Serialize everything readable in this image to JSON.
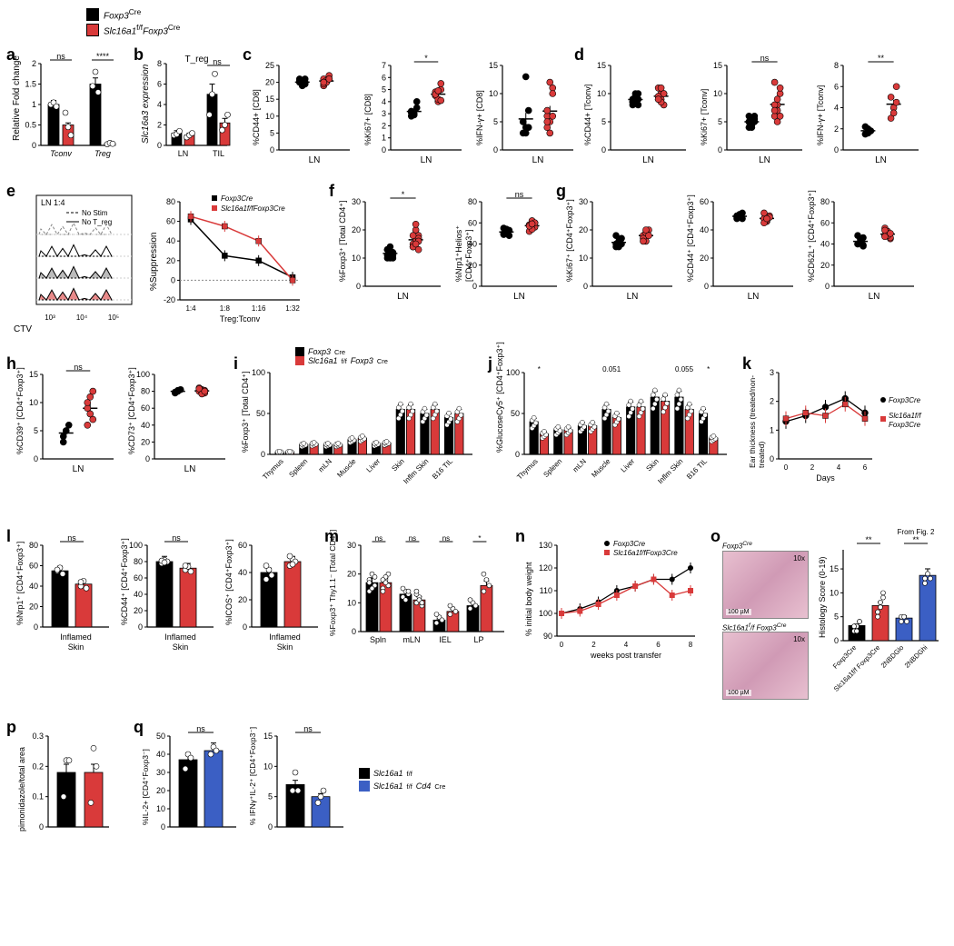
{
  "colors": {
    "black": "#000000",
    "red": "#d93a3a",
    "blue": "#3b5fc4",
    "gray": "#888888",
    "lightgray": "#cccccc"
  },
  "legend": {
    "item1": "Foxp3^Cre",
    "item2": "Slc16a1^f/f Foxp3^Cre"
  },
  "panels": {
    "a": {
      "label": "a",
      "ylabel": "Relative Fold change",
      "ymax": 2.0,
      "ytick": 0.5,
      "categories": [
        "T_conv",
        "T_reg"
      ],
      "significance": [
        "ns",
        "****"
      ],
      "bars": [
        {
          "cat": 0,
          "group": 0,
          "val": 1.0,
          "points": [
            1.0,
            1.05,
            0.95
          ]
        },
        {
          "cat": 0,
          "group": 1,
          "val": 0.5,
          "points": [
            0.8,
            0.45,
            0.25
          ]
        },
        {
          "cat": 1,
          "group": 0,
          "val": 1.5,
          "points": [
            1.45,
            1.8,
            1.3
          ]
        },
        {
          "cat": 1,
          "group": 1,
          "val": 0.05,
          "points": [
            0.03,
            0.06,
            0.04
          ]
        }
      ]
    },
    "b": {
      "label": "b",
      "title": "T_reg",
      "ylabel": "Slc16a3 expression",
      "ymax": 8,
      "ytick": 2,
      "categories": [
        "LN",
        "TIL"
      ],
      "sig": "ns",
      "bars": [
        {
          "cat": 0,
          "group": 0,
          "val": 1.2,
          "points": [
            1.0,
            1.1,
            1.4
          ]
        },
        {
          "cat": 0,
          "group": 1,
          "val": 1.0,
          "points": [
            0.8,
            1.0,
            1.2
          ]
        },
        {
          "cat": 1,
          "group": 0,
          "val": 5.0,
          "points": [
            3.0,
            5.0,
            7.0
          ]
        },
        {
          "cat": 1,
          "group": 1,
          "val": 2.2,
          "points": [
            1.5,
            2.0,
            3.0
          ]
        }
      ]
    },
    "c": {
      "label": "c",
      "charts": [
        {
          "ylabel": "%CD44+ [CD8]",
          "ymax": 25,
          "ytick": 5,
          "xlab": "LN",
          "g0": [
            20,
            19.5,
            21,
            20.5,
            19,
            20,
            21,
            20,
            19.5
          ],
          "g1": [
            21,
            20,
            22,
            19,
            20.5,
            21,
            19.5,
            20,
            21,
            20
          ]
        },
        {
          "ylabel": "%Ki67+ [CD8]",
          "ymax": 7,
          "ytick": 1,
          "xlab": "LN",
          "sig": "*",
          "g0": [
            2.8,
            3.0,
            3.5,
            3.2,
            3.0,
            4.0,
            3.1,
            2.9
          ],
          "g1": [
            4.5,
            4.0,
            5.0,
            4.8,
            4.2,
            5.5,
            4.6,
            4.9,
            4.1
          ]
        },
        {
          "ylabel": "%IFN-γ+ [CD8]",
          "ymax": 15,
          "ytick": 5,
          "xlab": "LN",
          "g0": [
            3,
            4,
            7,
            5,
            3,
            4,
            5,
            13
          ],
          "g1": [
            6,
            5,
            11,
            4,
            3,
            10,
            5,
            12,
            6,
            7
          ]
        }
      ]
    },
    "d": {
      "label": "d",
      "charts": [
        {
          "ylabel": "%CD44+ [Tconv]",
          "ymax": 15,
          "ytick": 5,
          "xlab": "LN",
          "g0": [
            8,
            9,
            10,
            8.5,
            9.5,
            8,
            9,
            10,
            9,
            8.5
          ],
          "g1": [
            9,
            10,
            8,
            11,
            9,
            10,
            9.5,
            8.5,
            10,
            9,
            11
          ]
        },
        {
          "ylabel": "%Ki67+ [Tconv]",
          "ymax": 15,
          "ytick": 5,
          "xlab": "LN",
          "sig": "ns",
          "g0": [
            4,
            5,
            6,
            5,
            4.5,
            5.5,
            5,
            4,
            5,
            6
          ],
          "g1": [
            6,
            8,
            10,
            12,
            7,
            6,
            8,
            5,
            11,
            7,
            9
          ]
        },
        {
          "ylabel": "%IFN-γ+ [Tconv]",
          "ymax": 8,
          "ytick": 2,
          "xlab": "LN",
          "sig": "**",
          "g0": [
            1.5,
            2,
            1.8,
            2.2,
            1.6
          ],
          "g1": [
            3,
            4,
            6,
            5,
            3.5,
            4.5
          ]
        }
      ]
    },
    "e": {
      "label": "e",
      "flow_title": "LN 1:4",
      "flow_legend": [
        "No Stim",
        "No T_reg"
      ],
      "xlabel": "CTV",
      "xticks": [
        "10³",
        "10⁴",
        "10⁵"
      ],
      "line_ylabel": "%Suppression",
      "line_ymax": 80,
      "line_ymin": -20,
      "line_ytick": 20,
      "line_xlabel": "Treg:Tconv",
      "line_xticks": [
        "1:4",
        "1:8",
        "1:16",
        "1:32"
      ],
      "line_g0": [
        62,
        25,
        20,
        3
      ],
      "line_g1": [
        65,
        55,
        40,
        0
      ]
    },
    "f": {
      "label": "f",
      "charts": [
        {
          "ylabel": "%Foxp3⁺ [Total CD4⁺]",
          "ymax": 30,
          "ytick": 10,
          "xlab": "LN",
          "sig": "*",
          "g0": [
            10,
            12,
            11,
            13,
            10,
            12,
            11,
            14,
            10,
            13,
            12
          ],
          "g1": [
            14,
            16,
            18,
            15,
            20,
            17,
            14,
            22,
            16,
            18,
            15,
            13
          ]
        },
        {
          "ylabel": "%Nrp1⁺Helios⁺ [CD4⁺Foxp3⁺]",
          "ymax": 80,
          "ytick": 20,
          "xlab": "LN",
          "sig": "ns",
          "g0": [
            50,
            52,
            48,
            55,
            50,
            53,
            49,
            54
          ],
          "g1": [
            58,
            55,
            60,
            52,
            62,
            56,
            58,
            54,
            60,
            57,
            59
          ]
        }
      ]
    },
    "g": {
      "label": "g",
      "charts": [
        {
          "ylabel": "%Ki67⁺ [CD4⁺Foxp3⁺]",
          "ymax": 30,
          "ytick": 10,
          "xlab": "LN",
          "g0": [
            14,
            16,
            15,
            18,
            14,
            17,
            15
          ],
          "g1": [
            18,
            16,
            20,
            17,
            19,
            18,
            16,
            20
          ]
        },
        {
          "ylabel": "%CD44⁺ [CD4⁺Foxp3⁺]",
          "ymax": 60,
          "ytick": 20,
          "xlab": "LN",
          "g0": [
            48,
            50,
            52,
            49,
            51,
            48,
            50
          ],
          "g1": [
            48,
            46,
            50,
            52,
            47,
            49,
            45,
            48
          ]
        },
        {
          "ylabel": "%CD62L⁺ [CD4⁺Foxp3⁺]",
          "ymax": 80,
          "ytick": 20,
          "xlab": "LN",
          "g0": [
            40,
            45,
            38,
            48,
            42,
            46,
            40,
            44,
            39
          ],
          "g1": [
            48,
            52,
            45,
            55,
            50,
            46,
            53,
            48,
            50,
            47
          ]
        }
      ]
    },
    "h": {
      "label": "h",
      "charts": [
        {
          "ylabel": "%CD39⁺ [CD4⁺Foxp3⁺]",
          "ymax": 15,
          "ytick": 5,
          "xlab": "LN",
          "sig": "ns",
          "g0": [
            4,
            5,
            6,
            3,
            5
          ],
          "g1": [
            9,
            11,
            7,
            10,
            8,
            12,
            6
          ]
        },
        {
          "ylabel": "%CD73⁺ [CD4⁺Foxp3⁺]",
          "ymax": 100,
          "ytick": 20,
          "xlab": "LN",
          "g0": [
            78,
            80,
            82,
            79,
            81
          ],
          "g1": [
            80,
            82,
            78,
            84,
            79,
            81,
            83,
            77,
            80
          ]
        }
      ]
    },
    "i": {
      "label": "i",
      "ylabel": "%Foxp3⁺ [Total CD4⁺]",
      "ymax": 100,
      "ytick": 50,
      "categories": [
        "Thymus",
        "Spleen",
        "mLN",
        "Muscle",
        "Liver",
        "Skin",
        "Inflm Skin",
        "B16 TIL"
      ],
      "legend": [
        "Foxp3^Cre",
        "Slc16a1^f/f Foxp3^Cre"
      ],
      "bars": [
        {
          "g0": 3,
          "g1": 3
        },
        {
          "g0": 12,
          "g1": 13
        },
        {
          "g0": 12,
          "g1": 12
        },
        {
          "g0": 18,
          "g1": 20
        },
        {
          "g0": 13,
          "g1": 14
        },
        {
          "g0": 55,
          "g1": 55
        },
        {
          "g0": 50,
          "g1": 55
        },
        {
          "g0": 45,
          "g1": 50
        }
      ]
    },
    "j": {
      "label": "j",
      "ylabel": "%GlucoseCy5⁺ [CD4⁺Foxp3⁺]",
      "ymax": 100,
      "ytick": 50,
      "categories": [
        "Thymus",
        "Spleen",
        "mLN",
        "Muscle",
        "Liver",
        "Skin",
        "Inflm Skin",
        "B16 TIL"
      ],
      "sigs": [
        "*",
        "",
        "",
        "0.051",
        "",
        "",
        "0.055",
        "*"
      ],
      "bars": [
        {
          "g0": 40,
          "g1": 25
        },
        {
          "g0": 30,
          "g1": 30
        },
        {
          "g0": 35,
          "g1": 35
        },
        {
          "g0": 55,
          "g1": 45
        },
        {
          "g0": 58,
          "g1": 58
        },
        {
          "g0": 70,
          "g1": 65
        },
        {
          "g0": 70,
          "g1": 55
        },
        {
          "g0": 50,
          "g1": 20
        }
      ]
    },
    "k": {
      "label": "k",
      "ylabel": "Ear thickness (treated/non-treated)",
      "ymax": 3,
      "ymin": 0,
      "ytick": 1,
      "xlabel": "Days",
      "xticks": [
        0,
        2,
        4,
        6
      ],
      "legend": [
        "Foxp3^Cre",
        "Slc16a1^f/f Foxp3^Cre"
      ],
      "g0": [
        1.3,
        1.5,
        1.8,
        2.1,
        1.6
      ],
      "g1": [
        1.4,
        1.6,
        1.5,
        1.9,
        1.4
      ]
    },
    "l": {
      "label": "l",
      "charts": [
        {
          "ylabel": "%Nrp1⁺ [CD4⁺Foxp3⁺]",
          "ymax": 80,
          "ytick": 20,
          "xlab": "Inflamed Skin",
          "sig": "ns",
          "g0v": 55,
          "g1v": 42,
          "g0p": [
            55,
            58,
            52,
            56
          ],
          "g1p": [
            40,
            45,
            38,
            44
          ]
        },
        {
          "ylabel": "%CD44⁺ [CD4⁺Foxp3⁺]",
          "ymax": 100,
          "ytick": 20,
          "xlab": "Inflamed Skin",
          "sig": "ns",
          "g0v": 80,
          "g1v": 72,
          "g0p": [
            78,
            82,
            80,
            81,
            79
          ],
          "g1p": [
            70,
            74,
            68,
            75
          ]
        },
        {
          "ylabel": "%ICOS⁺ [CD4⁺Foxp3⁺]",
          "ymax": 60,
          "ytick": 20,
          "xlab": "Inflamed Skin",
          "g0v": 40,
          "g1v": 48,
          "g0p": [
            35,
            42,
            38,
            45
          ],
          "g1p": [
            45,
            50,
            48,
            52,
            46
          ]
        }
      ]
    },
    "m": {
      "label": "m",
      "ylabel": "%Foxp3⁺ Thy1.1⁻ [Total CD4⁺]",
      "ymax": 30,
      "ytick": 10,
      "categories": [
        "Spln",
        "mLN",
        "IEL",
        "LP"
      ],
      "sigs": [
        "ns",
        "ns",
        "ns",
        "*"
      ],
      "bars": [
        {
          "g0": 17,
          "g1": 17,
          "g0p": [
            14,
            20,
            16,
            18,
            15,
            19,
            17
          ],
          "g1p": [
            15,
            18,
            20,
            14,
            19,
            16,
            18,
            17
          ]
        },
        {
          "g0": 13,
          "g1": 11,
          "g0p": [
            12,
            14,
            13,
            15,
            11,
            14
          ],
          "g1p": [
            10,
            12,
            9,
            13,
            11,
            10,
            14
          ]
        },
        {
          "g0": 4,
          "g1": 7,
          "g0p": [
            3,
            5,
            4,
            6
          ],
          "g1p": [
            6,
            8,
            7,
            9
          ]
        },
        {
          "g0": 9,
          "g1": 16,
          "g0p": [
            8,
            10,
            9,
            11
          ],
          "g1p": [
            14,
            18,
            16,
            20
          ]
        }
      ]
    },
    "n": {
      "label": "n",
      "ylabel": "% initial body weight",
      "ymax": 130,
      "ymin": 90,
      "ytick": 10,
      "xlabel": "weeks post transfer",
      "xticks": [
        0,
        2,
        4,
        6,
        8
      ],
      "legend": [
        "Foxp3^Cre",
        "Slc16a1^f/f Foxp3^Cre"
      ],
      "g0": [
        100,
        102,
        105,
        110,
        112,
        115,
        115,
        120
      ],
      "g1": [
        100,
        101,
        104,
        108,
        112,
        115,
        108,
        110
      ]
    },
    "o": {
      "label": "o",
      "img_labels": [
        "Foxp3^Cre",
        "Slc16a1^f/f Foxp3^Cre"
      ],
      "scale": "100 µM",
      "mag": "10x",
      "ylabel": "Histology Score (0-19)",
      "note": "From Fig. 2",
      "categories": [
        "Foxp3^Cre",
        "Slc16a1^f/f Foxp3^Cre",
        "2NBDG^lo",
        "2NBDG^hi"
      ],
      "sigs": [
        "**",
        "**"
      ],
      "bars": [
        {
          "color": "black",
          "val": 3,
          "pts": [
            2,
            3,
            4,
            3,
            2,
            4,
            3,
            2
          ]
        },
        {
          "color": "red",
          "val": 7,
          "pts": [
            5,
            8,
            9,
            6,
            7,
            10,
            6,
            7
          ]
        },
        {
          "color": "blue",
          "val": 4.5,
          "pts": [
            4,
            5,
            4,
            5,
            5
          ]
        },
        {
          "color": "blue",
          "val": 13,
          "pts": [
            12,
            14,
            13,
            13
          ]
        }
      ]
    },
    "p": {
      "label": "p",
      "ylabel": "pimonidazole/total area",
      "ymax": 0.3,
      "ytick": 0.1,
      "bars": [
        {
          "group": 0,
          "val": 0.18,
          "pts": [
            0.1,
            0.22,
            0.22
          ]
        },
        {
          "group": 1,
          "val": 0.18,
          "pts": [
            0.08,
            0.26,
            0.2
          ]
        }
      ]
    },
    "q": {
      "label": "q",
      "legend": [
        "Slc16a1^f/f",
        "Slc16a1^f/f Cd4^Cre"
      ],
      "charts": [
        {
          "ylabel": "%IL-2+ [CD4⁺Foxp3⁻]",
          "ymax": 50,
          "ytick": 10,
          "sig": "ns",
          "g0v": 37,
          "g1v": 42,
          "g0p": [
            32,
            40,
            38
          ],
          "g1p": [
            40,
            44,
            42
          ]
        },
        {
          "ylabel": "% IFNγ⁺IL-2⁺ [CD4⁺Foxp3⁻]",
          "ymax": 15,
          "ytick": 5,
          "sig": "ns",
          "g0v": 7,
          "g1v": 5,
          "g0p": [
            6,
            9,
            6
          ],
          "g1p": [
            4,
            5,
            6
          ]
        }
      ]
    }
  }
}
